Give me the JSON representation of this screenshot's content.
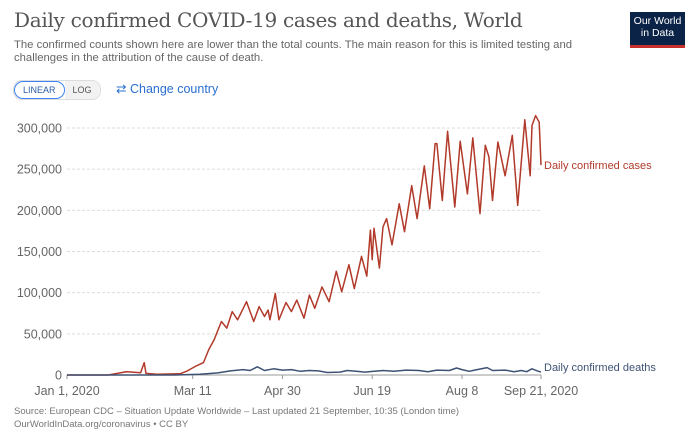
{
  "header": {
    "title": "Daily confirmed COVID-19 cases and deaths, World",
    "subtitle": "The confirmed counts shown here are lower than the total counts. The main reason for this is limited testing and challenges in the attribution of the cause of death.",
    "logo_text": "Our World in Data"
  },
  "controls": {
    "linear_label": "LINEAR",
    "log_label": "LOG",
    "active_scale": "linear",
    "change_country_label": "Change country",
    "change_country_icon": "swap-arrows-icon"
  },
  "footer": {
    "source": "Source: European CDC – Situation Update Worldwide – Last updated 21 September, 10:35 (London time)",
    "url": "OurWorldInData.org/coronavirus • CC BY"
  },
  "colors": {
    "cases": "#b13a2a",
    "deaths": "#3e5274",
    "accent": "#2a6fd1",
    "logo_bg": "#0b2346"
  },
  "chart_data": {
    "type": "line",
    "xlabel": "",
    "ylabel": "",
    "ylim": [
      0,
      300000
    ],
    "xlim": [
      "2020-01-01",
      "2020-09-21"
    ],
    "grid": "horizontal dashed",
    "legend": "right, inline labels at line ends",
    "y_ticks": [
      0,
      50000,
      100000,
      150000,
      200000,
      250000,
      300000
    ],
    "y_tick_labels": [
      "0",
      "50,000",
      "100,000",
      "150,000",
      "200,000",
      "250,000",
      "300,000"
    ],
    "x_ticks": [
      "2020-01-01",
      "2020-03-11",
      "2020-04-30",
      "2020-06-19",
      "2020-08-08",
      "2020-09-21"
    ],
    "x_tick_labels": [
      "Jan 1, 2020",
      "Mar 11",
      "Apr 30",
      "Jun 19",
      "Aug 8",
      "Sep 21, 2020"
    ],
    "series": [
      {
        "name": "Daily confirmed cases",
        "color": "#b13a2a",
        "points": [
          [
            "2020-01-01",
            0
          ],
          [
            "2020-01-24",
            0
          ],
          [
            "2020-02-03",
            4000
          ],
          [
            "2020-02-11",
            2800
          ],
          [
            "2020-02-13",
            15000
          ],
          [
            "2020-02-14",
            2000
          ],
          [
            "2020-02-20",
            1000
          ],
          [
            "2020-03-04",
            1500
          ],
          [
            "2020-03-08",
            5000
          ],
          [
            "2020-03-13",
            11000
          ],
          [
            "2020-03-17",
            15000
          ],
          [
            "2020-03-20",
            31000
          ],
          [
            "2020-03-23",
            43000
          ],
          [
            "2020-03-27",
            65000
          ],
          [
            "2020-03-30",
            57000
          ],
          [
            "2020-04-02",
            77000
          ],
          [
            "2020-04-05",
            67000
          ],
          [
            "2020-04-10",
            89000
          ],
          [
            "2020-04-14",
            65000
          ],
          [
            "2020-04-17",
            83000
          ],
          [
            "2020-04-20",
            71000
          ],
          [
            "2020-04-22",
            79000
          ],
          [
            "2020-04-23",
            67000
          ],
          [
            "2020-04-26",
            99000
          ],
          [
            "2020-04-28",
            67000
          ],
          [
            "2020-05-02",
            88000
          ],
          [
            "2020-05-05",
            77000
          ],
          [
            "2020-05-08",
            91000
          ],
          [
            "2020-05-12",
            69000
          ],
          [
            "2020-05-15",
            97000
          ],
          [
            "2020-05-18",
            81000
          ],
          [
            "2020-05-22",
            107000
          ],
          [
            "2020-05-26",
            89000
          ],
          [
            "2020-05-30",
            126000
          ],
          [
            "2020-06-02",
            101000
          ],
          [
            "2020-06-06",
            134000
          ],
          [
            "2020-06-09",
            105000
          ],
          [
            "2020-06-13",
            144000
          ],
          [
            "2020-06-16",
            120000
          ],
          [
            "2020-06-18",
            176000
          ],
          [
            "2020-06-19",
            140000
          ],
          [
            "2020-06-20",
            178000
          ],
          [
            "2020-06-23",
            130000
          ],
          [
            "2020-06-25",
            180000
          ],
          [
            "2020-06-27",
            190000
          ],
          [
            "2020-06-30",
            158000
          ],
          [
            "2020-07-04",
            208000
          ],
          [
            "2020-07-07",
            174000
          ],
          [
            "2020-07-11",
            230000
          ],
          [
            "2020-07-14",
            190000
          ],
          [
            "2020-07-18",
            254000
          ],
          [
            "2020-07-21",
            202000
          ],
          [
            "2020-07-24",
            281000
          ],
          [
            "2020-07-25",
            281000
          ],
          [
            "2020-07-28",
            212000
          ],
          [
            "2020-07-31",
            296000
          ],
          [
            "2020-08-04",
            204000
          ],
          [
            "2020-08-07",
            284000
          ],
          [
            "2020-08-11",
            220000
          ],
          [
            "2020-08-14",
            288000
          ],
          [
            "2020-08-18",
            196000
          ],
          [
            "2020-08-21",
            279000
          ],
          [
            "2020-08-23",
            265000
          ],
          [
            "2020-08-25",
            212000
          ],
          [
            "2020-08-28",
            283000
          ],
          [
            "2020-09-01",
            242000
          ],
          [
            "2020-09-05",
            291000
          ],
          [
            "2020-09-08",
            206000
          ],
          [
            "2020-09-12",
            310000
          ],
          [
            "2020-09-15",
            242000
          ],
          [
            "2020-09-16",
            303000
          ],
          [
            "2020-09-18",
            315000
          ],
          [
            "2020-09-20",
            307000
          ],
          [
            "2020-09-21",
            255000
          ]
        ]
      },
      {
        "name": "Daily confirmed deaths",
        "color": "#3e5274",
        "points": [
          [
            "2020-01-01",
            0
          ],
          [
            "2020-03-01",
            60
          ],
          [
            "2020-03-15",
            800
          ],
          [
            "2020-03-25",
            2500
          ],
          [
            "2020-04-01",
            5000
          ],
          [
            "2020-04-08",
            6500
          ],
          [
            "2020-04-12",
            5500
          ],
          [
            "2020-04-16",
            10000
          ],
          [
            "2020-04-20",
            5500
          ],
          [
            "2020-04-25",
            7500
          ],
          [
            "2020-04-30",
            6000
          ],
          [
            "2020-05-05",
            6500
          ],
          [
            "2020-05-10",
            4500
          ],
          [
            "2020-05-15",
            5500
          ],
          [
            "2020-05-20",
            5000
          ],
          [
            "2020-05-25",
            3000
          ],
          [
            "2020-06-01",
            3500
          ],
          [
            "2020-06-05",
            5500
          ],
          [
            "2020-06-10",
            4500
          ],
          [
            "2020-06-15",
            3500
          ],
          [
            "2020-06-20",
            4500
          ],
          [
            "2020-06-25",
            5500
          ],
          [
            "2020-07-01",
            4500
          ],
          [
            "2020-07-08",
            6000
          ],
          [
            "2020-07-15",
            5500
          ],
          [
            "2020-07-20",
            4000
          ],
          [
            "2020-07-25",
            6000
          ],
          [
            "2020-08-01",
            5500
          ],
          [
            "2020-08-05",
            8500
          ],
          [
            "2020-08-08",
            6500
          ],
          [
            "2020-08-12",
            4500
          ],
          [
            "2020-08-15",
            6000
          ],
          [
            "2020-08-22",
            9000
          ],
          [
            "2020-08-25",
            5500
          ],
          [
            "2020-09-01",
            6000
          ],
          [
            "2020-09-06",
            4000
          ],
          [
            "2020-09-10",
            5500
          ],
          [
            "2020-09-13",
            4000
          ],
          [
            "2020-09-16",
            7500
          ],
          [
            "2020-09-19",
            5000
          ],
          [
            "2020-09-21",
            3500
          ]
        ]
      }
    ]
  }
}
